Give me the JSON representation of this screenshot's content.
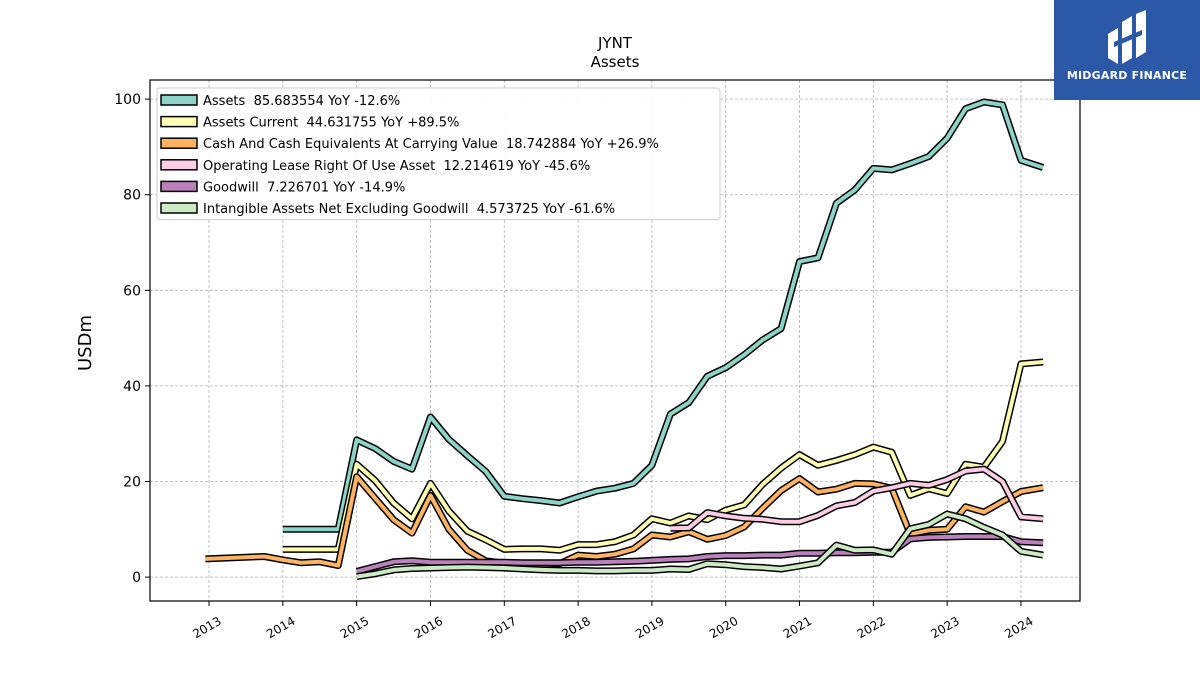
{
  "chart_data": {
    "type": "line",
    "title": "JYNT",
    "subtitle": "Assets",
    "ylabel": "USDm",
    "xlabel": "",
    "ylim": [
      -5,
      104
    ],
    "xlim": [
      2012.2,
      2024.8
    ],
    "yticks": [
      0,
      20,
      40,
      60,
      80,
      100
    ],
    "xticks": [
      "2013",
      "2014",
      "2015",
      "2016",
      "2017",
      "2018",
      "2019",
      "2020",
      "2021",
      "2022",
      "2023",
      "2024"
    ],
    "grid": true,
    "legend_position": "top-left",
    "series": [
      {
        "name": "Assets  85.683554 YoY -12.6%",
        "color": "#8dd3c7",
        "points": [
          [
            2014.0,
            10
          ],
          [
            2014.75,
            10
          ],
          [
            2015.0,
            28.7
          ],
          [
            2015.25,
            26.9
          ],
          [
            2015.5,
            24.2
          ],
          [
            2015.75,
            22.6
          ],
          [
            2016.0,
            33.5
          ],
          [
            2016.25,
            28.8
          ],
          [
            2016.5,
            25.4
          ],
          [
            2016.75,
            22.1
          ],
          [
            2017.0,
            16.9
          ],
          [
            2017.25,
            16.4
          ],
          [
            2017.5,
            16.0
          ],
          [
            2017.75,
            15.5
          ],
          [
            2018.0,
            16.8
          ],
          [
            2018.25,
            18.0
          ],
          [
            2018.5,
            18.6
          ],
          [
            2018.75,
            19.6
          ],
          [
            2019.0,
            23.4
          ],
          [
            2019.25,
            34.1
          ],
          [
            2019.5,
            36.5
          ],
          [
            2019.75,
            42.0
          ],
          [
            2020.0,
            43.8
          ],
          [
            2020.25,
            46.5
          ],
          [
            2020.5,
            49.6
          ],
          [
            2020.75,
            52.0
          ],
          [
            2021.0,
            66.0
          ],
          [
            2021.25,
            66.8
          ],
          [
            2021.5,
            78.2
          ],
          [
            2021.75,
            81.0
          ],
          [
            2022.0,
            85.5
          ],
          [
            2022.25,
            85.2
          ],
          [
            2022.5,
            86.5
          ],
          [
            2022.75,
            88.0
          ],
          [
            2023.0,
            91.8
          ],
          [
            2023.25,
            98.0
          ],
          [
            2023.5,
            99.4
          ],
          [
            2023.75,
            98.8
          ],
          [
            2024.0,
            87.2
          ],
          [
            2024.3,
            85.7
          ]
        ]
      },
      {
        "name": "Assets Current  44.631755 YoY +89.5%",
        "color": "#ffffb3",
        "points": [
          [
            2014.0,
            5.8
          ],
          [
            2014.75,
            5.8
          ],
          [
            2015.0,
            23.6
          ],
          [
            2015.25,
            20.2
          ],
          [
            2015.5,
            15.5
          ],
          [
            2015.75,
            12.2
          ],
          [
            2016.0,
            19.6
          ],
          [
            2016.25,
            13.8
          ],
          [
            2016.5,
            9.6
          ],
          [
            2016.75,
            7.8
          ],
          [
            2017.0,
            5.8
          ],
          [
            2017.25,
            5.9
          ],
          [
            2017.5,
            5.9
          ],
          [
            2017.75,
            5.6
          ],
          [
            2018.0,
            6.8
          ],
          [
            2018.25,
            6.8
          ],
          [
            2018.5,
            7.4
          ],
          [
            2018.75,
            8.8
          ],
          [
            2019.0,
            12.2
          ],
          [
            2019.25,
            11.3
          ],
          [
            2019.5,
            12.8
          ],
          [
            2019.75,
            12.0
          ],
          [
            2020.0,
            14.0
          ],
          [
            2020.25,
            15.1
          ],
          [
            2020.5,
            19.4
          ],
          [
            2020.75,
            22.8
          ],
          [
            2021.0,
            25.6
          ],
          [
            2021.25,
            23.4
          ],
          [
            2021.5,
            24.4
          ],
          [
            2021.75,
            25.6
          ],
          [
            2022.0,
            27.2
          ],
          [
            2022.25,
            26.1
          ],
          [
            2022.5,
            17.1
          ],
          [
            2022.75,
            18.5
          ],
          [
            2023.0,
            17.5
          ],
          [
            2023.25,
            23.6
          ],
          [
            2023.5,
            23.0
          ],
          [
            2023.75,
            28.4
          ],
          [
            2024.0,
            44.6
          ],
          [
            2024.3,
            45.0
          ]
        ]
      },
      {
        "name": "Cash And Cash Equivalents At Carrying Value  18.742884 YoY +26.9%",
        "color": "#fdb462",
        "points": [
          [
            2012.95,
            3.8
          ],
          [
            2013.75,
            4.3
          ],
          [
            2014.0,
            3.6
          ],
          [
            2014.25,
            3.0
          ],
          [
            2014.5,
            3.2
          ],
          [
            2014.75,
            2.4
          ],
          [
            2015.0,
            21.0
          ],
          [
            2015.25,
            16.5
          ],
          [
            2015.5,
            12.0
          ],
          [
            2015.75,
            9.2
          ],
          [
            2016.0,
            17.1
          ],
          [
            2016.25,
            10.0
          ],
          [
            2016.5,
            5.6
          ],
          [
            2016.75,
            3.4
          ],
          [
            2017.0,
            2.9
          ],
          [
            2017.25,
            2.7
          ],
          [
            2017.5,
            2.6
          ],
          [
            2017.75,
            2.8
          ],
          [
            2018.0,
            4.6
          ],
          [
            2018.25,
            4.3
          ],
          [
            2018.5,
            4.8
          ],
          [
            2018.75,
            5.9
          ],
          [
            2019.0,
            8.8
          ],
          [
            2019.25,
            8.4
          ],
          [
            2019.5,
            9.5
          ],
          [
            2019.75,
            7.9
          ],
          [
            2020.0,
            8.7
          ],
          [
            2020.25,
            10.5
          ],
          [
            2020.5,
            14.4
          ],
          [
            2020.75,
            18.1
          ],
          [
            2021.0,
            20.6
          ],
          [
            2021.25,
            17.8
          ],
          [
            2021.5,
            18.4
          ],
          [
            2021.75,
            19.6
          ],
          [
            2022.0,
            19.5
          ],
          [
            2022.25,
            18.6
          ],
          [
            2022.5,
            9.0
          ],
          [
            2022.75,
            9.8
          ],
          [
            2023.0,
            10.0
          ],
          [
            2023.25,
            14.7
          ],
          [
            2023.5,
            13.6
          ],
          [
            2023.75,
            15.8
          ],
          [
            2024.0,
            17.9
          ],
          [
            2024.3,
            18.7
          ]
        ]
      },
      {
        "name": "Operating Lease Right Of Use Asset  12.214619 YoY -45.6%",
        "color": "#fccde5",
        "points": [
          [
            2019.25,
            10.2
          ],
          [
            2019.5,
            10.3
          ],
          [
            2019.75,
            13.5
          ],
          [
            2020.0,
            12.8
          ],
          [
            2020.25,
            12.3
          ],
          [
            2020.5,
            12.1
          ],
          [
            2020.75,
            11.6
          ],
          [
            2021.0,
            11.6
          ],
          [
            2021.25,
            12.9
          ],
          [
            2021.5,
            14.9
          ],
          [
            2021.75,
            15.6
          ],
          [
            2022.0,
            18.0
          ],
          [
            2022.25,
            18.7
          ],
          [
            2022.5,
            19.6
          ],
          [
            2022.75,
            19.2
          ],
          [
            2023.0,
            20.4
          ],
          [
            2023.25,
            22.2
          ],
          [
            2023.5,
            22.6
          ],
          [
            2023.75,
            20.0
          ],
          [
            2024.0,
            12.6
          ],
          [
            2024.3,
            12.2
          ]
        ]
      },
      {
        "name": "Goodwill  7.226701 YoY -14.9%",
        "color": "#bc80bd",
        "points": [
          [
            2015.0,
            1.2
          ],
          [
            2015.25,
            2.2
          ],
          [
            2015.5,
            3.2
          ],
          [
            2015.75,
            3.4
          ],
          [
            2016.0,
            3.1
          ],
          [
            2016.25,
            3.1
          ],
          [
            2016.5,
            3.1
          ],
          [
            2016.75,
            3.1
          ],
          [
            2017.0,
            3.1
          ],
          [
            2017.25,
            3.0
          ],
          [
            2017.5,
            3.0
          ],
          [
            2017.75,
            3.0
          ],
          [
            2018.0,
            3.1
          ],
          [
            2018.25,
            3.1
          ],
          [
            2018.5,
            3.2
          ],
          [
            2018.75,
            3.3
          ],
          [
            2019.0,
            3.5
          ],
          [
            2019.25,
            3.7
          ],
          [
            2019.5,
            3.8
          ],
          [
            2019.75,
            4.3
          ],
          [
            2020.0,
            4.5
          ],
          [
            2020.25,
            4.5
          ],
          [
            2020.5,
            4.6
          ],
          [
            2020.75,
            4.6
          ],
          [
            2021.0,
            5.0
          ],
          [
            2021.25,
            5.0
          ],
          [
            2021.5,
            5.1
          ],
          [
            2021.75,
            5.1
          ],
          [
            2022.0,
            5.2
          ],
          [
            2022.25,
            5.2
          ],
          [
            2022.5,
            8.0
          ],
          [
            2022.75,
            8.3
          ],
          [
            2023.0,
            8.4
          ],
          [
            2023.25,
            8.5
          ],
          [
            2023.5,
            8.5
          ],
          [
            2023.75,
            8.5
          ],
          [
            2024.0,
            7.4
          ],
          [
            2024.3,
            7.2
          ]
        ]
      },
      {
        "name": "Intangible Assets Net Excluding Goodwill  4.573725 YoY -61.6%",
        "color": "#ccebc5",
        "points": [
          [
            2015.0,
            0.1
          ],
          [
            2015.25,
            0.7
          ],
          [
            2015.5,
            1.5
          ],
          [
            2015.75,
            1.8
          ],
          [
            2016.0,
            1.9
          ],
          [
            2016.25,
            2.0
          ],
          [
            2016.5,
            2.1
          ],
          [
            2016.75,
            2.0
          ],
          [
            2017.0,
            1.9
          ],
          [
            2017.25,
            1.7
          ],
          [
            2017.5,
            1.5
          ],
          [
            2017.75,
            1.4
          ],
          [
            2018.0,
            1.4
          ],
          [
            2018.25,
            1.3
          ],
          [
            2018.5,
            1.3
          ],
          [
            2018.75,
            1.4
          ],
          [
            2019.0,
            1.4
          ],
          [
            2019.25,
            1.7
          ],
          [
            2019.5,
            1.6
          ],
          [
            2019.75,
            2.8
          ],
          [
            2020.0,
            2.6
          ],
          [
            2020.25,
            2.2
          ],
          [
            2020.5,
            2.0
          ],
          [
            2020.75,
            1.7
          ],
          [
            2021.0,
            2.3
          ],
          [
            2021.25,
            3.0
          ],
          [
            2021.5,
            6.7
          ],
          [
            2021.75,
            5.6
          ],
          [
            2022.0,
            5.7
          ],
          [
            2022.25,
            4.8
          ],
          [
            2022.5,
            10.1
          ],
          [
            2022.75,
            11.0
          ],
          [
            2023.0,
            13.2
          ],
          [
            2023.25,
            12.2
          ],
          [
            2023.5,
            10.4
          ],
          [
            2023.75,
            8.8
          ],
          [
            2024.0,
            5.4
          ],
          [
            2024.3,
            4.6
          ]
        ]
      }
    ]
  },
  "logo": {
    "text": "MIDGARD FINANCE",
    "background": "#2b59a8"
  }
}
